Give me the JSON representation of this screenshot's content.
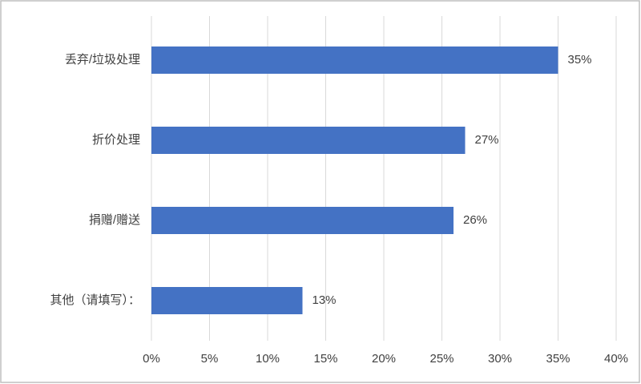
{
  "chart_data": {
    "type": "hbar",
    "categories": [
      "丢弃/垃圾处理",
      "折价处理",
      "捐赠/赠送",
      "其他（请填写）："
    ],
    "values": [
      35,
      27,
      26,
      13
    ],
    "value_labels": [
      "35%",
      "27%",
      "26%",
      "13%"
    ],
    "color": "#4472c4",
    "xlim": [
      0,
      40
    ],
    "xticks": [
      {
        "value": 0,
        "label": "0%"
      },
      {
        "value": 5,
        "label": "5%"
      },
      {
        "value": 10,
        "label": "10%"
      },
      {
        "value": 15,
        "label": "15%"
      },
      {
        "value": 20,
        "label": "20%"
      },
      {
        "value": 25,
        "label": "25%"
      },
      {
        "value": 30,
        "label": "30%"
      },
      {
        "value": 35,
        "label": "35%"
      },
      {
        "value": 40,
        "label": "40%"
      }
    ],
    "grid": true
  }
}
